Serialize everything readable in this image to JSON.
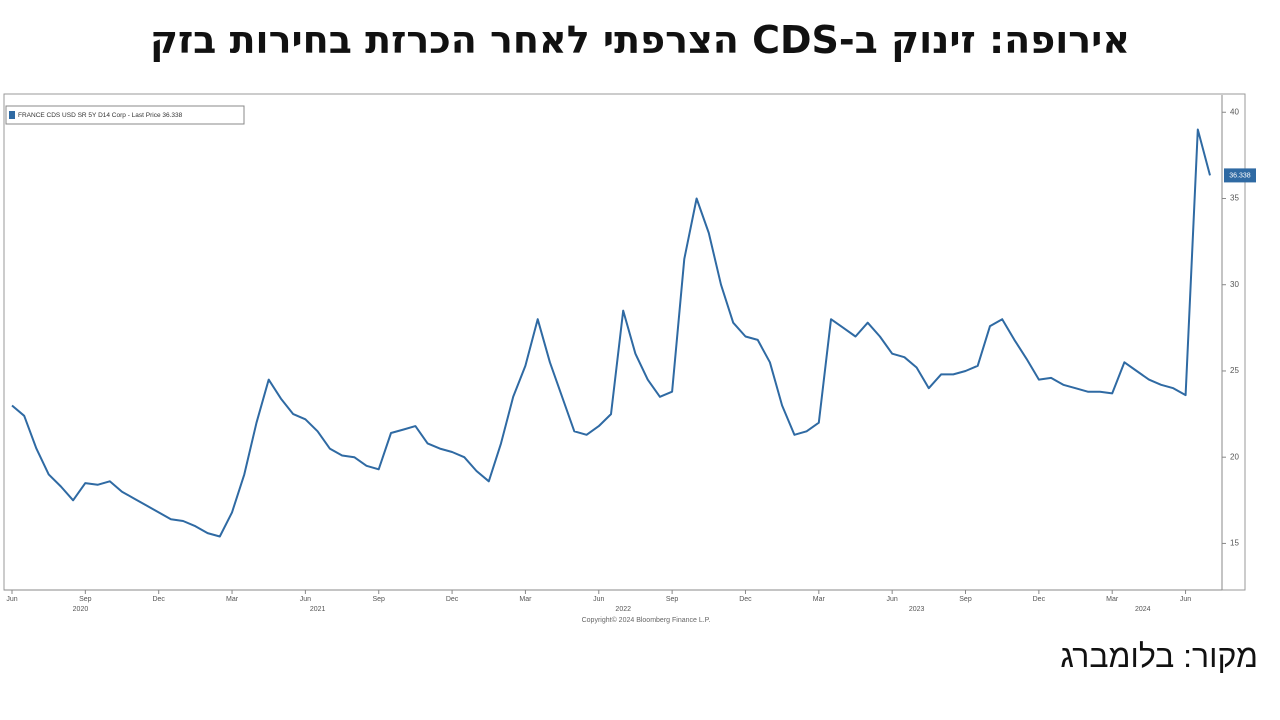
{
  "header": {
    "title": "אירופה: זינוק ב-CDS הצרפתי לאחר הכרזת בחירות בזק"
  },
  "footer": {
    "source": "מקור: בלומברג"
  },
  "chart_data": {
    "type": "line",
    "categories": [
      "Jun",
      null,
      null,
      null,
      null,
      null,
      "Sep",
      null,
      null,
      null,
      null,
      null,
      "Dec",
      null,
      null,
      null,
      null,
      null,
      "Mar",
      null,
      null,
      null,
      null,
      null,
      "Jun",
      null,
      null,
      null,
      null,
      null,
      "Sep",
      null,
      null,
      null,
      null,
      null,
      "Dec",
      null,
      null,
      null,
      null,
      null,
      "Mar",
      null,
      null,
      null,
      null,
      null,
      "Jun",
      null,
      null,
      null,
      null,
      null,
      "Sep",
      null,
      null,
      null,
      null,
      null,
      "Dec",
      null,
      null,
      null,
      null,
      null,
      "Mar",
      null,
      null,
      null,
      null,
      null,
      "Jun",
      null,
      null,
      null,
      null,
      null,
      "Sep",
      null,
      null,
      null,
      null,
      null,
      "Dec",
      null,
      null,
      null,
      null,
      null,
      "Mar",
      null,
      null,
      null,
      null,
      null,
      "Jun",
      null,
      null
    ],
    "years": [
      "2020",
      "2021",
      "2022",
      "2023",
      "2024"
    ],
    "series": [
      {
        "name": "FRANCE CDS USD SR 5Y D14 Corp - Last Price 36.338",
        "color": "#2f6aa3",
        "values": [
          23.0,
          22.4,
          20.5,
          19.0,
          18.3,
          17.5,
          18.5,
          18.4,
          18.6,
          18.0,
          17.6,
          17.2,
          16.8,
          16.4,
          16.3,
          16.0,
          15.6,
          15.4,
          16.8,
          19.0,
          22.0,
          24.5,
          23.4,
          22.5,
          22.2,
          21.5,
          20.5,
          20.1,
          20.0,
          19.5,
          19.3,
          21.4,
          21.6,
          21.8,
          20.8,
          20.5,
          20.3,
          20.0,
          19.2,
          18.6,
          20.8,
          23.5,
          25.3,
          28.0,
          25.5,
          23.5,
          21.5,
          21.3,
          21.8,
          22.5,
          28.5,
          26.0,
          24.5,
          23.5,
          23.8,
          31.5,
          35.0,
          33.0,
          30.0,
          27.8,
          27.0,
          26.8,
          25.5,
          23.0,
          21.3,
          21.5,
          22.0,
          28.0,
          27.5,
          27.0,
          27.8,
          27.0,
          26.0,
          25.8,
          25.2,
          24.0,
          24.8,
          24.8,
          25.0,
          25.3,
          27.6,
          28.0,
          26.8,
          25.7,
          24.5,
          24.6,
          24.2,
          24.0,
          23.8,
          23.8,
          23.7,
          25.5,
          25.0,
          24.5,
          24.2,
          24.0,
          23.6,
          39.0,
          36.338
        ]
      }
    ],
    "last_label": "36.338",
    "ylim": [
      12.3,
      41.0
    ],
    "yticks": [
      15,
      20,
      25,
      30,
      35,
      40
    ],
    "footnote": "Copyright© 2024 Bloomberg Finance L.P."
  }
}
